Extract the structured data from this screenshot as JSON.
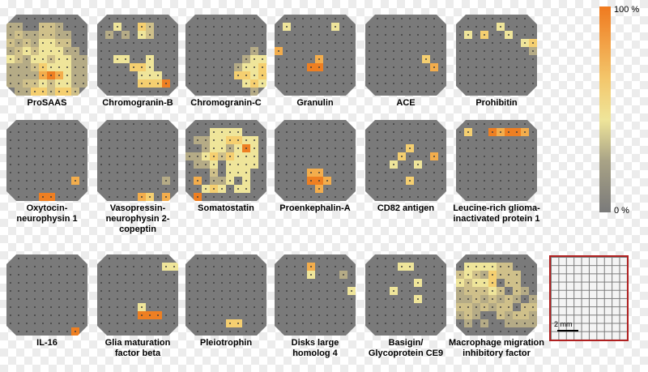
{
  "colorbar": {
    "max_label": "100 %",
    "min_label": "0 %",
    "colors": [
      "#f07a1f",
      "#f3c66b",
      "#efe59a",
      "#a9a386",
      "#7a7a7a"
    ]
  },
  "scalebar_label": "2 mm",
  "palette": {
    "0": "#7a7a7a",
    "1": "#b5ab86",
    "2": "#cfc08a",
    "3": "#efe59a",
    "4": "#f5cf70",
    "5": "#f3ad4c",
    "6": "#ee7f22"
  },
  "panels": [
    {
      "id": "prosaas",
      "label": [
        "ProSAAS"
      ],
      "rows": [
        "0000000000",
        "1100221000",
        "1211221100",
        "2121332200",
        "1232333110",
        "3213323311",
        "1112433311",
        "1111565311",
        "1122323311",
        "0114424420"
      ]
    },
    {
      "id": "chromogranin-b",
      "label": [
        "Chromogranin-B"
      ],
      "rows": [
        "0000000000",
        "0030042000",
        "0101032000",
        "0000000000",
        "0000000000",
        "0033003000",
        "0000443000",
        "0000033300",
        "0000044460",
        "0000000000"
      ]
    },
    {
      "id": "chromogranin-c",
      "label": [
        "Chromogranin-C"
      ],
      "rows": [
        "0000000000",
        "0000000000",
        "0000000000",
        "0000000000",
        "0000000010",
        "0000000133",
        "0000001334",
        "0000004434",
        "0000000343",
        "0000000010"
      ]
    },
    {
      "id": "granulin",
      "label": [
        "Granulin"
      ],
      "rows": [
        "0000000000",
        "0300000300",
        "0000000000",
        "0000000000",
        "5000000000",
        "0000050000",
        "0000660000",
        "0000000000",
        "0000000000",
        "0000000000"
      ]
    },
    {
      "id": "ace",
      "label": [
        "ACE"
      ],
      "rows": [
        "0000000000",
        "0000000000",
        "0000000000",
        "0000000000",
        "0000000000",
        "0000000400",
        "0000000050",
        "0000000000",
        "0000000000",
        "0000000000"
      ]
    },
    {
      "id": "prohibitin",
      "label": [
        "Prohibitin"
      ],
      "rows": [
        "0000000000",
        "0000030000",
        "0304003000",
        "0000000034",
        "0000000001",
        "0000000000",
        "0000000000",
        "0000000000",
        "0000000000",
        "0000000000"
      ]
    },
    {
      "id": "oxytocin-neurophysin-1",
      "label": [
        "Oxytocin-",
        "neurophysin 1"
      ],
      "rows": [
        "0000000000",
        "0000000000",
        "0000000000",
        "0000000000",
        "0000000000",
        "0000000000",
        "0000000000",
        "0000000050",
        "0000000000",
        "0000660000"
      ]
    },
    {
      "id": "vasopressin-neurophysin-2-copeptin",
      "label": [
        "Vasopressin-",
        "neurophysin 2-",
        "copeptin"
      ],
      "rows": [
        "0000000000",
        "0000000000",
        "0000000000",
        "0000000000",
        "0000000000",
        "0000000000",
        "0000000000",
        "0000000010",
        "0000000000",
        "0000054050"
      ]
    },
    {
      "id": "somatostatin",
      "label": [
        "Somatostatin"
      ],
      "rows": [
        "0000000000",
        "0003333000",
        "0113344330",
        "0013313630",
        "1134243330",
        "0113033330",
        "0002033300",
        "0501130300",
        "0034303300",
        "0600000000"
      ]
    },
    {
      "id": "proenkephalin-a",
      "label": [
        "Proenkephalin-A"
      ],
      "rows": [
        "0000000000",
        "0000000000",
        "0000000000",
        "0000000000",
        "0000000000",
        "0000000000",
        "0000550000",
        "0000665000",
        "0000050000",
        "0000000000"
      ]
    },
    {
      "id": "cd82-antigen",
      "label": [
        "CD82 antigen"
      ],
      "rows": [
        "0000000000",
        "0000000000",
        "0000000000",
        "0000040000",
        "0000400050",
        "0003003000",
        "0000000000",
        "0000040000",
        "0000000000",
        "0000000000"
      ]
    },
    {
      "id": "leucine-rich-glioma-inactivated-protein-1",
      "label": [
        "Leucine-rich glioma-",
        "inactivated protein 1"
      ],
      "rows": [
        "0000000000",
        "0400656650",
        "0000000000",
        "0000000000",
        "0000000000",
        "0000000000",
        "0000000000",
        "0000000000",
        "0000000000",
        "0000000000"
      ]
    },
    {
      "id": "il-16",
      "label": [
        "IL-16"
      ],
      "rows": [
        "0000000000",
        "0000000000",
        "0000000000",
        "0000000000",
        "0000000000",
        "0000000000",
        "0000000000",
        "0000000000",
        "0000000000",
        "0000000060"
      ]
    },
    {
      "id": "glia-maturation-factor-beta",
      "label": [
        "Glia maturation",
        "factor beta"
      ],
      "rows": [
        "0000000000",
        "0000000033",
        "0000000000",
        "0000000000",
        "0000000000",
        "0000000000",
        "0000030000",
        "0000066600",
        "0000000000",
        "0000000000"
      ]
    },
    {
      "id": "pleiotrophin",
      "label": [
        "Pleiotrophin"
      ],
      "rows": [
        "0000000000",
        "0000000000",
        "0000000000",
        "0000000000",
        "0000000000",
        "0000000000",
        "0000000000",
        "0000000000",
        "0000044000",
        "0000000000"
      ]
    },
    {
      "id": "disks-large-homolog-4",
      "label": [
        "Disks large",
        "homolog 4"
      ],
      "rows": [
        "0000000000",
        "0000500000",
        "0000300010",
        "0000000000",
        "0000000003",
        "0000000000",
        "0000000000",
        "0000000000",
        "0000000000",
        "0000000000"
      ]
    },
    {
      "id": "basigin-glycoprotein-ce9",
      "label": [
        "Basigin/",
        "Glycoprotein CE9"
      ],
      "rows": [
        "0000000000",
        "0000330000",
        "0000000000",
        "0000003000",
        "0003000000",
        "0000003000",
        "0000000000",
        "0000000000",
        "0000000000",
        "0000000000"
      ]
    },
    {
      "id": "macrophage-migration-inhibitory-factor",
      "label": [
        "Macrophage migration",
        "inhibitory factor"
      ],
      "rows": [
        "0000000000",
        "0333322000",
        "2321422200",
        "3233402200",
        "1222320210",
        "1121212101",
        "2212122022",
        "1210021221",
        "0101001111",
        "0000000000"
      ]
    }
  ]
}
